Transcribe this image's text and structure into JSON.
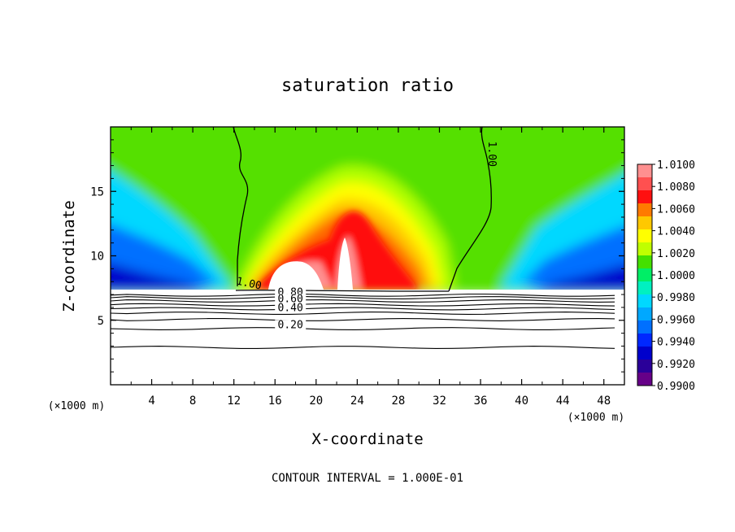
{
  "chart_data": {
    "type": "heatmap",
    "title": "saturation ratio",
    "xlabel": "X-coordinate",
    "ylabel": "Z-coordinate",
    "x_unit_left": "(×1000 m)",
    "x_unit_right": "(×1000 m)",
    "xlim": [
      0,
      50
    ],
    "ylim": [
      0,
      20
    ],
    "x_ticks": [
      "4",
      "8",
      "12",
      "16",
      "20",
      "24",
      "28",
      "32",
      "36",
      "40",
      "44",
      "48"
    ],
    "y_ticks": [
      "5",
      "10",
      "15"
    ],
    "footer": "CONTOUR INTERVAL = 1.000E-01",
    "colorbar": {
      "labels": [
        "1.0100",
        "1.0080",
        "1.0060",
        "1.0040",
        "1.0020",
        "1.0000",
        "0.9980",
        "0.9960",
        "0.9940",
        "0.9920",
        "0.9900"
      ],
      "colors": [
        "#ff9090",
        "#ff5050",
        "#ff1010",
        "#ff7a00",
        "#ffc800",
        "#ffff00",
        "#c0ff00",
        "#44e000",
        "#00ee66",
        "#00f0c0",
        "#00d8ff",
        "#00a8ff",
        "#0070ff",
        "#0028ff",
        "#0000cc",
        "#2a0099",
        "#660088"
      ]
    },
    "contour_labels": [
      {
        "text": "1.00",
        "x": 13.4,
        "y": 7.6
      },
      {
        "text": "1.00",
        "x": 36.8,
        "y": 17.9
      },
      {
        "text": "0.80",
        "x": 17.5,
        "y": 6.9
      },
      {
        "text": "0.60",
        "x": 17.5,
        "y": 6.4
      },
      {
        "text": "0.40",
        "x": 17.5,
        "y": 5.7
      },
      {
        "text": "0.20",
        "x": 17.5,
        "y": 4.4
      }
    ],
    "contour_lines_below": [
      6.95,
      6.75,
      6.5,
      6.2,
      5.9,
      5.55,
      5.05,
      4.35,
      2.9
    ],
    "cloud_base": 7.3,
    "grid": false
  }
}
